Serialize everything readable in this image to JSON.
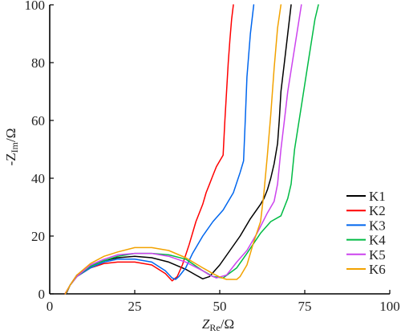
{
  "chart_data": {
    "type": "line",
    "xlabel": {
      "main": "Z",
      "sub": "Re",
      "unit": "/Ω"
    },
    "ylabel": {
      "prefix": "-Z",
      "sub": "Im",
      "unit": "/Ω"
    },
    "xlim": [
      0,
      100
    ],
    "ylim": [
      0,
      100
    ],
    "xticks": [
      0,
      25,
      50,
      75,
      100
    ],
    "yticks": [
      0,
      20,
      40,
      60,
      80,
      100
    ],
    "grid": false,
    "legend_position": "bottom-right",
    "series": [
      {
        "name": "K1",
        "color": "#000000",
        "x": [
          4.8,
          6,
          8,
          12,
          16,
          20,
          25,
          30,
          35,
          40,
          43,
          45,
          47,
          50,
          53,
          56,
          59,
          62,
          63,
          64,
          65,
          66,
          67,
          67.5,
          68,
          69,
          70,
          71
        ],
        "y": [
          0,
          3,
          6.5,
          9.5,
          11.5,
          12.5,
          13,
          12.5,
          11,
          8.5,
          6.5,
          5.2,
          6,
          10,
          15,
          20,
          26,
          31,
          33,
          36,
          40,
          45,
          52,
          60,
          70,
          80,
          90,
          100
        ]
      },
      {
        "name": "K2",
        "color": "#ff0000",
        "x": [
          4.5,
          6,
          8,
          12,
          16,
          20,
          25,
          30,
          34,
          36,
          37.5,
          39,
          41,
          43,
          45,
          46,
          47,
          48,
          49,
          50,
          51,
          51.5,
          52,
          52.5,
          53,
          53.5,
          54
        ],
        "y": [
          0,
          3,
          6,
          9,
          10.5,
          11,
          11,
          10,
          7,
          4.5,
          6,
          10,
          17,
          25,
          31,
          35,
          38,
          41,
          44,
          46,
          48,
          60,
          70,
          80,
          88,
          95,
          100
        ]
      },
      {
        "name": "K3",
        "color": "#0066ee",
        "x": [
          4.7,
          6,
          8,
          12,
          16,
          20,
          25,
          30,
          34,
          36,
          37,
          38,
          40,
          42,
          45,
          48,
          51,
          54,
          56,
          57,
          57.5,
          58,
          59,
          60
        ],
        "y": [
          0,
          3,
          6,
          9,
          11,
          12,
          12,
          11,
          8,
          5.5,
          5,
          6,
          9,
          14,
          20,
          25,
          29,
          35,
          42,
          46,
          60,
          75,
          90,
          100
        ]
      },
      {
        "name": "K4",
        "color": "#00bb44",
        "x": [
          4.6,
          6,
          8,
          12,
          16,
          20,
          25,
          30,
          35,
          40,
          45,
          48,
          51,
          55,
          58,
          62,
          65,
          68,
          70,
          71,
          72,
          74,
          76,
          78,
          79
        ],
        "y": [
          0,
          3,
          6,
          9.5,
          11.5,
          13,
          14,
          14,
          13.5,
          12,
          8,
          6,
          5.5,
          9,
          14,
          21,
          25,
          27,
          33,
          38,
          50,
          65,
          80,
          95,
          100
        ]
      },
      {
        "name": "K5",
        "color": "#cc44ee",
        "x": [
          4.6,
          6,
          8,
          12,
          16,
          20,
          25,
          30,
          35,
          40,
          45,
          47,
          49,
          52,
          55,
          58,
          61,
          64,
          66,
          67,
          68,
          69,
          70,
          72,
          74
        ],
        "y": [
          0,
          3,
          6,
          10,
          12,
          13.5,
          14,
          14,
          13,
          11,
          8,
          6.5,
          5.5,
          6.5,
          11,
          15,
          21,
          28,
          32,
          38,
          50,
          60,
          70,
          85,
          100
        ]
      },
      {
        "name": "K6",
        "color": "#f2a200",
        "x": [
          4.6,
          6,
          8,
          12,
          16,
          20,
          25,
          30,
          35,
          40,
          45,
          48,
          50,
          52,
          55,
          56,
          58,
          60,
          62,
          63,
          64,
          65,
          66,
          67,
          68
        ],
        "y": [
          0,
          3,
          6.5,
          10.5,
          13,
          14.5,
          16,
          16,
          15,
          12.5,
          9,
          7,
          5.8,
          5,
          5,
          6,
          10,
          18,
          25,
          35,
          48,
          62,
          78,
          92,
          100
        ]
      }
    ]
  }
}
